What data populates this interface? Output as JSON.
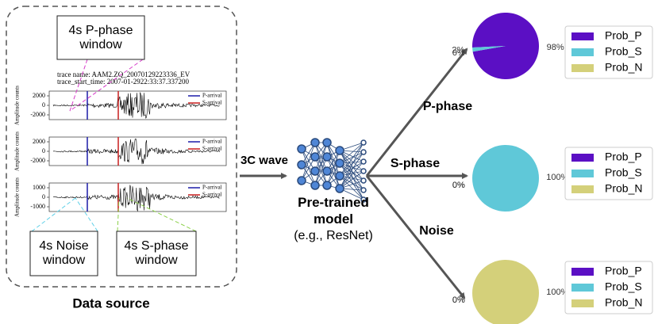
{
  "data_source": {
    "label": "Data source",
    "trace_name": "trace name: AAM2.ZQ_20070129223336_EV",
    "trace_start_time": "trace_start_time: 2007-01-2922:33:37.337200",
    "ylabel": "Amplitude counts",
    "legend": [
      "P-arrival",
      "S-arrival"
    ],
    "panels": [
      {
        "yticks": [
          2000,
          0,
          -2000
        ]
      },
      {
        "yticks": [
          2000,
          0,
          -2000
        ]
      },
      {
        "yticks": [
          1000,
          0,
          -1000
        ]
      }
    ]
  },
  "windows": {
    "p_phase": "4s P-phase window",
    "noise": "4s Noise window",
    "s_phase": "4s S-phase window"
  },
  "input_label": "3C wave",
  "model": {
    "title": "Pre-trained model",
    "example": "(e.g., ResNet)"
  },
  "legend": {
    "labels": [
      "Prob_P",
      "Prob_S",
      "Prob_N"
    ],
    "colors": [
      "#5b0fc4",
      "#5fc8d8",
      "#d4d07a"
    ]
  },
  "outputs": [
    {
      "branch": "P-phase",
      "values": [
        98,
        2,
        0
      ],
      "value_labels": [
        "98%",
        "2%",
        "0%"
      ]
    },
    {
      "branch": "S-phase",
      "values": [
        0,
        100,
        0
      ],
      "value_labels": [
        "0%",
        "100%",
        "0%"
      ]
    },
    {
      "branch": "Noise",
      "values": [
        0,
        0,
        100
      ],
      "value_labels": [
        "0%",
        "0%",
        "100%"
      ]
    }
  ]
}
